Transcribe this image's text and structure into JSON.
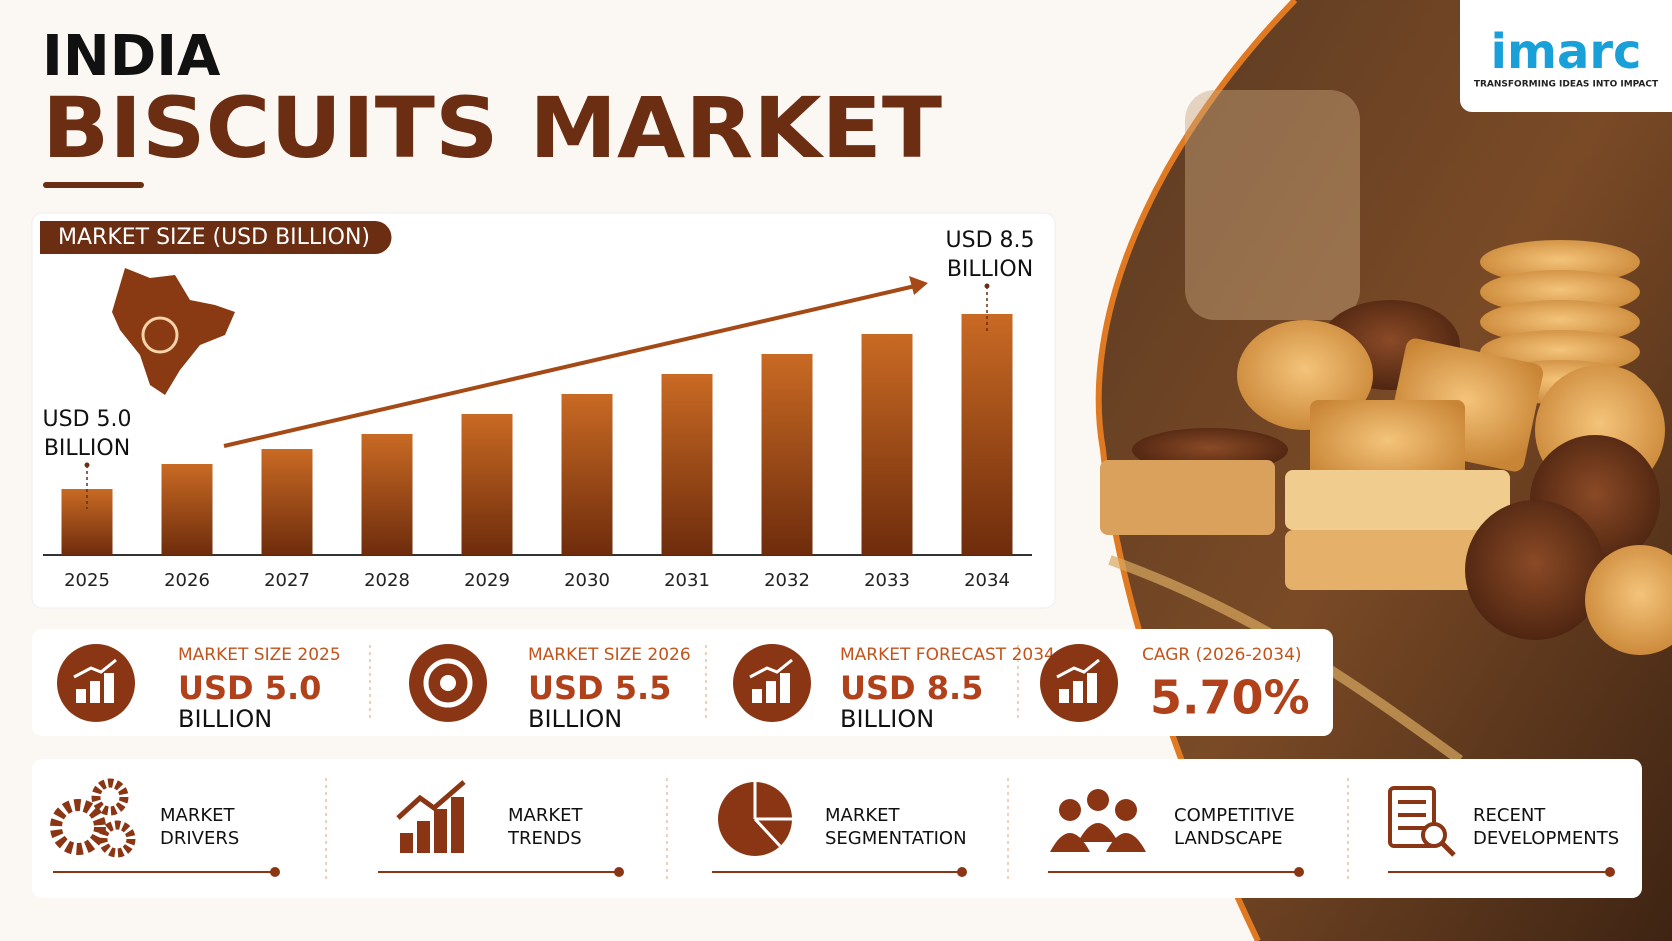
{
  "logo": {
    "name": "imarc",
    "tagline": "TRANSFORMING IDEAS INTO IMPACT"
  },
  "header": {
    "title_line1": "INDIA",
    "title_line2": "BISCUITS MARKET"
  },
  "chart_data": {
    "type": "bar",
    "title": "MARKET SIZE (USD BILLION)",
    "categories": [
      "2025",
      "2026",
      "2027",
      "2028",
      "2029",
      "2030",
      "2031",
      "2032",
      "2033",
      "2034"
    ],
    "values": [
      5.0,
      5.5,
      5.8,
      6.1,
      6.5,
      6.9,
      7.3,
      7.7,
      8.1,
      8.5
    ],
    "color": "#9a4a1c",
    "annotations": [
      [
        "USD 5.0",
        "BILLION"
      ],
      [
        "USD 8.5",
        "BILLION"
      ]
    ]
  },
  "stats": [
    {
      "label": "MARKET SIZE 2025",
      "value": "USD 5.0",
      "unit": "BILLION"
    },
    {
      "label": "MARKET SIZE 2026",
      "value": "USD 5.5",
      "unit": "BILLION"
    },
    {
      "label": "MARKET FORECAST 2034",
      "value": "USD 8.5",
      "unit": "BILLION"
    },
    {
      "label": "CAGR (2026-2034)",
      "value": "5.70%"
    }
  ],
  "topics": [
    [
      "MARKET",
      "DRIVERS"
    ],
    [
      "MARKET",
      "TRENDS"
    ],
    [
      "MARKET",
      "SEGMENTATION"
    ],
    [
      "COMPETITIVE",
      "LANDSCAPE"
    ],
    [
      "RECENT",
      "DEVELOPMENTS"
    ]
  ]
}
